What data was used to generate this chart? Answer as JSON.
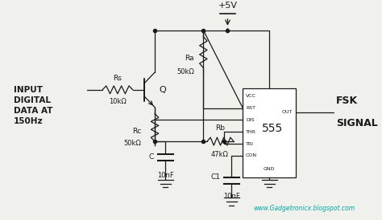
{
  "bg_color": "#f0f0ec",
  "line_color": "#1a1a1a",
  "text_color": "#1a1a1a",
  "cyan_color": "#00aaaa",
  "website": "www.Gadgetronicx.blogspot.com",
  "input_label": "INPUT\nDIGITAL\nDATA AT\n150Hz",
  "Rs_label": "Rs",
  "Rs_val": "10kΩ",
  "Rc_label": "Rc",
  "Rc_val": "50kΩ",
  "Ra_label": "Ra",
  "Ra_val": "50kΩ",
  "Rb_label": "Rb",
  "Rb_val": "47kΩ",
  "C_label": "C",
  "C_val": "10nF",
  "C1_label": "C1",
  "C1_val": "10nF",
  "supply": "+5V",
  "Q_label": "Q",
  "ic_name": "555",
  "fsk_label": "FSK\nSIGNAL"
}
